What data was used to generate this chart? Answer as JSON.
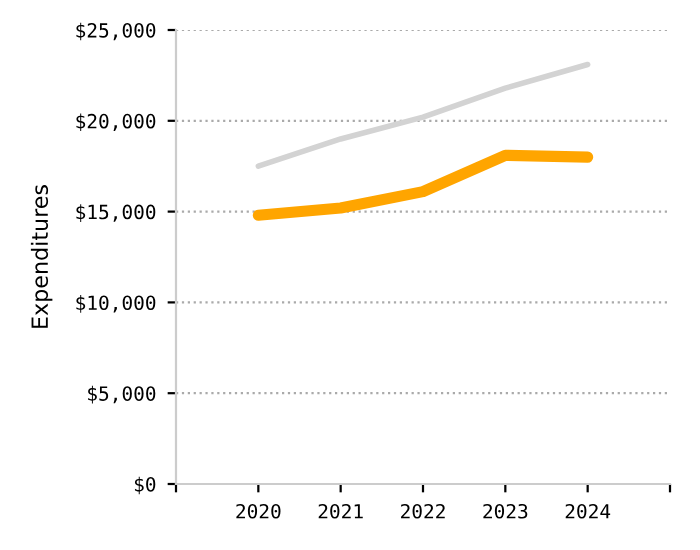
{
  "chart_data": {
    "type": "line",
    "ylabel": "Expenditures",
    "x": [
      2020,
      2021,
      2022,
      2023,
      2024
    ],
    "series": [
      {
        "color": "#d3d3d3",
        "values": [
          17500,
          19000,
          20200,
          21800,
          23100
        ]
      },
      {
        "color": "#ffa500",
        "values": [
          14800,
          15200,
          16100,
          18100,
          18000
        ]
      }
    ],
    "xlim": [
      2019,
      2025
    ],
    "xticks": [
      {
        "value": 2019,
        "label": null
      },
      2020,
      2021,
      2022,
      2023,
      2024,
      {
        "value": 2025,
        "label": null
      }
    ],
    "ylim": [
      0,
      25000
    ],
    "yticks": [
      {
        "value": 0,
        "label": "$0"
      },
      {
        "value": 5000,
        "label": "$5,000"
      },
      {
        "value": 10000,
        "label": "$10,000"
      },
      {
        "value": 15000,
        "label": "$15,000"
      },
      {
        "value": 20000,
        "label": "$20,000"
      },
      {
        "value": 25000,
        "label": "$25,000"
      }
    ],
    "grid": "y",
    "marker": "none",
    "line_style": "solid"
  }
}
